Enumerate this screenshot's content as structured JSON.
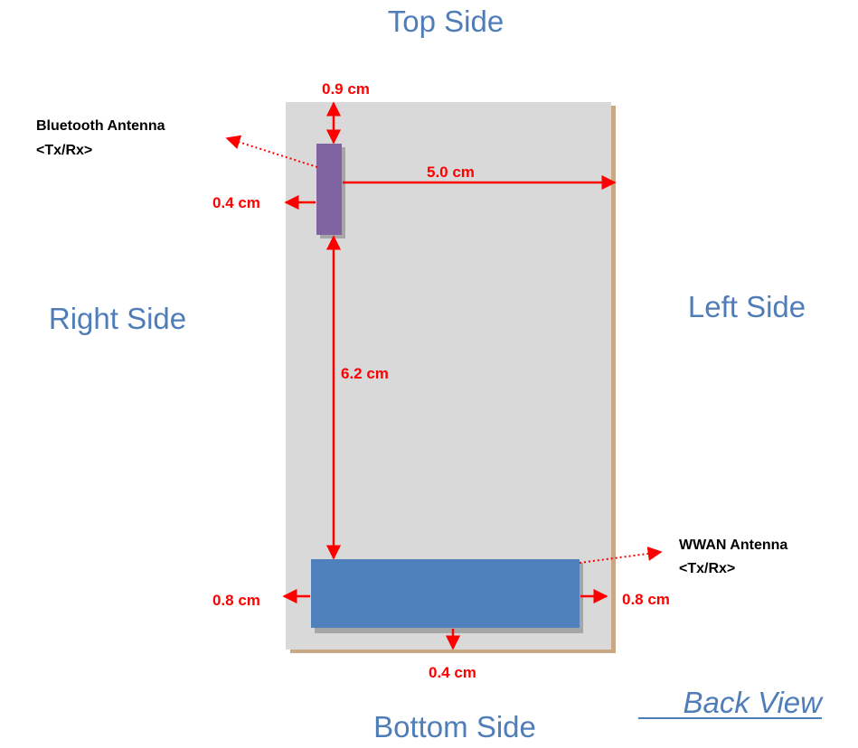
{
  "colors": {
    "side_text": "#4f7db8",
    "dimension": "#ff0000",
    "board": "#d9d9d9",
    "board_shadow": "#c8a986",
    "bluetooth_antenna": "#8064a2",
    "wwan_antenna": "#4f81bd",
    "antenna_shadow": "#a6a6a6",
    "label_text": "#000000"
  },
  "sides": {
    "top": "Top Side",
    "bottom": "Bottom Side",
    "right": "Right Side",
    "left": "Left Side"
  },
  "view": "Back View",
  "antennas": {
    "bluetooth": {
      "name": "Bluetooth Antenna",
      "type": "<Tx/Rx>"
    },
    "wwan": {
      "name": "WWAN Antenna",
      "type": "<Tx/Rx>"
    }
  },
  "dimensions": {
    "bt_to_top": "0.9 cm",
    "bt_to_right": "0.4 cm",
    "bt_to_left": "5.0 cm",
    "bt_to_wwan": "6.2 cm",
    "wwan_to_right": "0.8 cm",
    "wwan_to_left": "0.8 cm",
    "wwan_to_bottom": "0.4 cm"
  }
}
